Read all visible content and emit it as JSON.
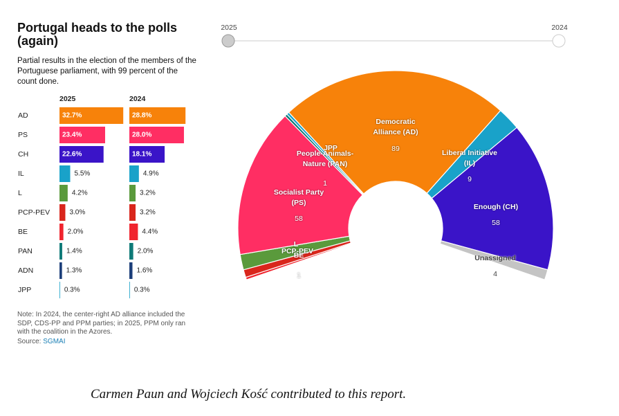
{
  "header": {
    "title": "Portugal heads to the polls (again)",
    "subtitle": "Partial results in the election of the members of the Portuguese parliament, with 99 percent of the count done."
  },
  "slider": {
    "labels": [
      "2025",
      "2024"
    ]
  },
  "chart_data": [
    {
      "type": "bar",
      "categories": [
        "AD",
        "PS",
        "CH",
        "IL",
        "L",
        "PCP-PEV",
        "BE",
        "PAN",
        "ADN",
        "JPP"
      ],
      "colors": [
        "#f7820a",
        "#ff2e63",
        "#3a14c8",
        "#19a2c9",
        "#5a9a3c",
        "#d9261c",
        "#f0242e",
        "#0f7a78",
        "#1d3f7a",
        "#19a2c9"
      ],
      "series": [
        {
          "name": "2025",
          "values": [
            32.7,
            23.4,
            22.6,
            5.5,
            4.2,
            3.0,
            2.0,
            1.4,
            1.3,
            0.3
          ],
          "value_labels": [
            "32.7%",
            "23.4%",
            "22.6%",
            "5.5%",
            "4.2%",
            "3.0%",
            "2.0%",
            "1.4%",
            "1.3%",
            "0.3%"
          ]
        },
        {
          "name": "2024",
          "values": [
            28.8,
            28.0,
            18.1,
            4.9,
            3.2,
            3.2,
            4.4,
            2.0,
            1.6,
            0.3
          ],
          "value_labels": [
            "28.8%",
            "28.0%",
            "18.1%",
            "4.9%",
            "3.2%",
            "3.2%",
            "4.4%",
            "2.0%",
            "1.6%",
            "0.3%"
          ]
        }
      ]
    },
    {
      "type": "parliament",
      "categories": [
        "BE",
        "PCP-PEV",
        "L",
        "Socialist Party (PS)",
        "People-Animals-Nature (PAN)",
        "JPP",
        "Democratic Alliance (AD)",
        "Liberal Initiative (IL)",
        "Enough (CH)",
        "Unassigned"
      ],
      "values": [
        1,
        3,
        6,
        58,
        1,
        1,
        89,
        9,
        58,
        4
      ],
      "colors": [
        "#f0242e",
        "#d9261c",
        "#5a9a3c",
        "#ff2e63",
        "#0f7a78",
        "#19a2c9",
        "#f7820a",
        "#19a2c9",
        "#3a14c8",
        "#c4c4c4"
      ]
    }
  ],
  "note": "Note: In 2024, the center-right AD alliance included the SDP, CDS-PP and PPM parties; in 2025, PPM only ran with the coalition in the Azores.",
  "source": {
    "label": "Source:",
    "link": "SGMAI"
  },
  "credit": "Carmen Paun and Wojciech Kość contributed to this report."
}
